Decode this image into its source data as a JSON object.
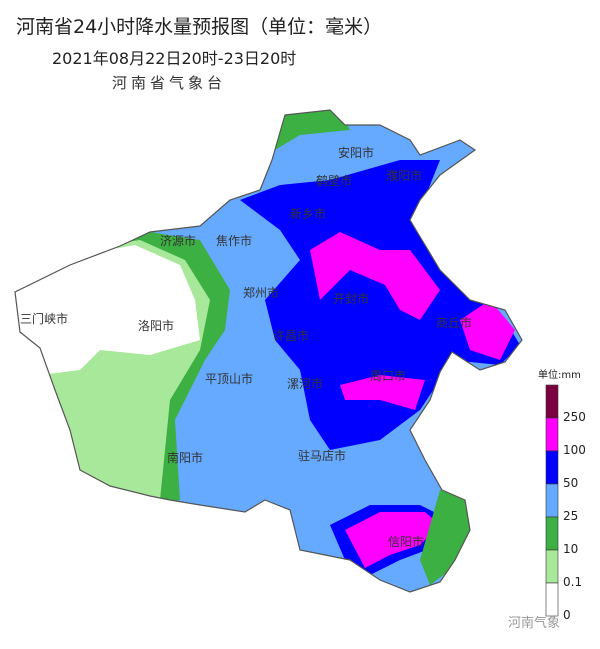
{
  "header": {
    "title": "河南省24小时降水量预报图（单位：毫米）",
    "subtitle": "2021年08月22日20时-23日20时",
    "issuer": "河南省气象台"
  },
  "cities": [
    "安阳市",
    "鹤壁市",
    "濮阳市",
    "新乡市",
    "济源市",
    "焦作市",
    "三门峡市",
    "洛阳市",
    "郑州市",
    "开封市",
    "商丘市",
    "许昌市",
    "平顶山市",
    "漯河市",
    "周口市",
    "南阳市",
    "驻马店市",
    "信阳市"
  ],
  "legend": {
    "unit": "单位:mm",
    "labels": [
      "250",
      "100",
      "50",
      "25",
      "10",
      "0.1",
      "0"
    ],
    "colors": [
      "#7a0040",
      "#ff00ff",
      "#0000ff",
      "#66aaff",
      "#3cb043",
      "#a8e89a",
      "#ffffff"
    ]
  },
  "watermark": "河南气象"
}
